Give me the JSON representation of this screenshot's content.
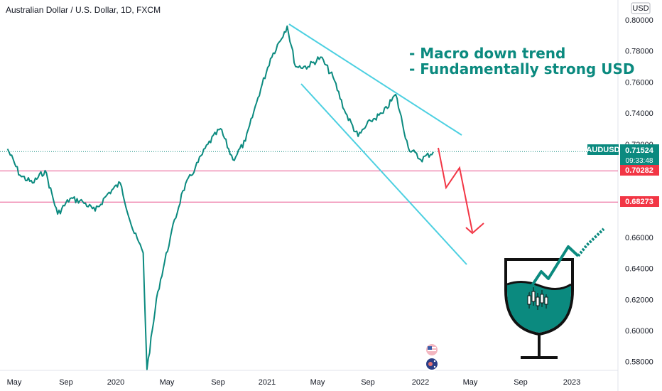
{
  "header": {
    "title": "Australian Dollar / U.S. Dollar, 1D, FXCM"
  },
  "axis": {
    "currency": "USD",
    "price_ticks": [
      "0.80000",
      "0.78000",
      "0.76000",
      "0.74000",
      "0.72000",
      "0.66000",
      "0.64000",
      "0.62000",
      "0.60000",
      "0.58000"
    ],
    "time_ticks": [
      "May",
      "Sep",
      "2020",
      "May",
      "Sep",
      "2021",
      "May",
      "Sep",
      "2022",
      "May",
      "Sep",
      "2023"
    ]
  },
  "annotations": {
    "line1": "- Macro down trend",
    "line2": "- Fundamentally strong USD"
  },
  "price_tag": {
    "symbol": "AUDUSD",
    "price": "0.71524",
    "countdown": "09:33:48"
  },
  "levels": [
    {
      "value": "0.70282",
      "color": "#f23645"
    },
    {
      "value": "0.68273",
      "color": "#f23645"
    }
  ],
  "colors": {
    "price_line": "#0b8a7f",
    "trend_lines": "#4dd0e1",
    "projection": "#f23645",
    "level_line": "#e8508c"
  },
  "chart_data": {
    "type": "line",
    "title": "Australian Dollar / U.S. Dollar, 1D, FXCM",
    "ylabel": "USD",
    "ylim": [
      0.575,
      0.805
    ],
    "x": [
      "2019-04",
      "2019-05",
      "2019-06",
      "2019-07",
      "2019-08",
      "2019-09",
      "2019-10",
      "2019-11",
      "2019-12",
      "2020-01",
      "2020-02",
      "2020-03-10",
      "2020-03-19",
      "2020-04",
      "2020-05",
      "2020-06",
      "2020-07",
      "2020-08",
      "2020-09",
      "2020-10",
      "2020-11",
      "2020-12",
      "2021-01",
      "2021-02-25",
      "2021-03",
      "2021-04",
      "2021-05",
      "2021-06",
      "2021-07",
      "2021-08",
      "2021-09",
      "2021-10",
      "2021-11",
      "2021-12",
      "2022-01",
      "2022-02"
    ],
    "series": [
      {
        "values": [
          0.717,
          0.7,
          0.695,
          0.703,
          0.675,
          0.685,
          0.683,
          0.677,
          0.688,
          0.695,
          0.665,
          0.65,
          0.575,
          0.625,
          0.66,
          0.69,
          0.705,
          0.72,
          0.73,
          0.71,
          0.722,
          0.75,
          0.775,
          0.796,
          0.77,
          0.77,
          0.776,
          0.763,
          0.74,
          0.725,
          0.735,
          0.74,
          0.752,
          0.718,
          0.71,
          0.715
        ]
      }
    ],
    "horizontal_levels": [
      0.70282,
      0.68273
    ],
    "last_price": 0.71524
  }
}
